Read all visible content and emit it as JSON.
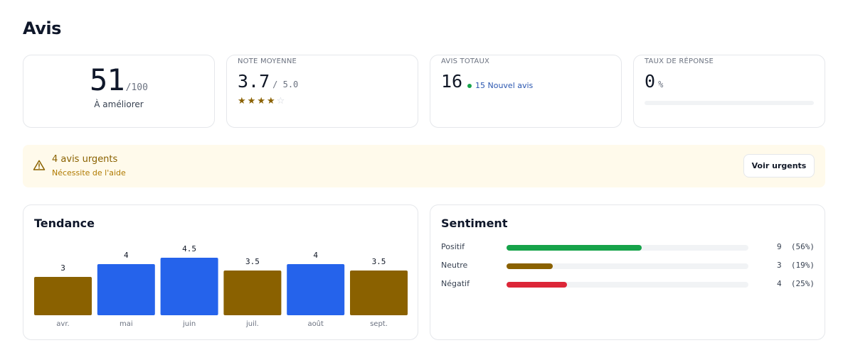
{
  "page": {
    "title": "Avis"
  },
  "score": {
    "value": "51",
    "max": "/100",
    "label": "À améliorer"
  },
  "rating": {
    "label": "NOTE MOYENNE",
    "value": "3.7",
    "max": "/ 5.0",
    "stars": 3.7,
    "star_count": 5
  },
  "total": {
    "label": "AVIS TOTAUX",
    "value": "16",
    "new_text": "15 Nouvel avis"
  },
  "response": {
    "label": "TAUX DE RÉPONSE",
    "value": "0",
    "unit": "%",
    "progress": 0
  },
  "alert": {
    "title": "4 avis urgents",
    "subtitle": "Nécessite de l'aide",
    "button": "Voir urgents"
  },
  "trend": {
    "title": "Tendance"
  },
  "chart_data": {
    "type": "bar",
    "categories": [
      "avr.",
      "mai",
      "juin",
      "juil.",
      "août",
      "sept."
    ],
    "values": [
      3,
      4,
      4.5,
      3.5,
      4,
      3.5
    ],
    "value_labels": [
      "3",
      "4",
      "4.5",
      "3.5",
      "4",
      "3.5"
    ],
    "colors": [
      "#8a6100",
      "#2563eb",
      "#2563eb",
      "#8a6100",
      "#2563eb",
      "#8a6100"
    ]
  },
  "sentiment": {
    "title": "Sentiment",
    "rows": [
      {
        "label": "Positif",
        "value": "9  (56%)",
        "pct": 56,
        "color": "#16a34a"
      },
      {
        "label": "Neutre",
        "value": "3  (19%)",
        "pct": 19,
        "color": "#8a6100"
      },
      {
        "label": "Négatif",
        "value": "4  (25%)",
        "pct": 25,
        "color": "#dc2638"
      }
    ]
  }
}
